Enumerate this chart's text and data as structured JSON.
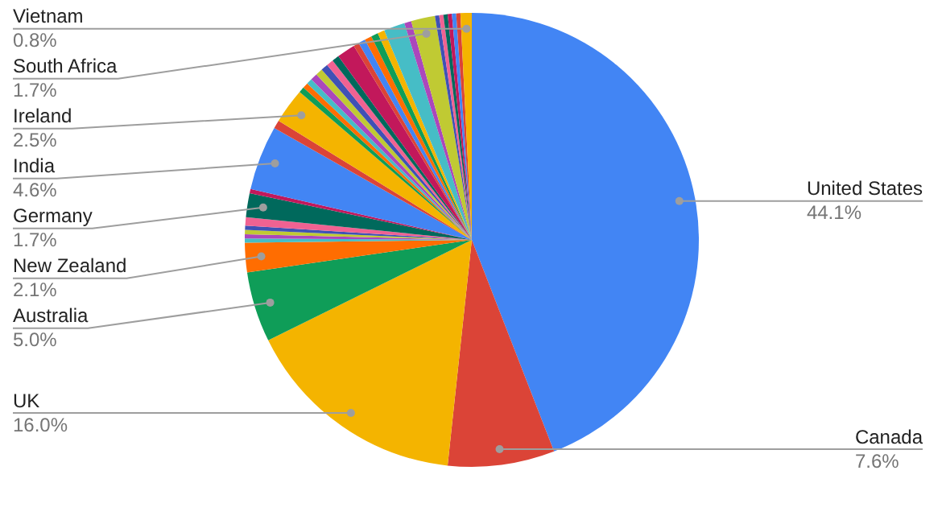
{
  "chart_data": {
    "type": "pie",
    "legend": false,
    "categories": [
      "United States",
      "Canada",
      "UK",
      "Australia",
      "New Zealand",
      null,
      null,
      null,
      null,
      null,
      "Germany",
      null,
      "India",
      null,
      "Ireland",
      null,
      null,
      null,
      null,
      null,
      null,
      null,
      null,
      null,
      null,
      null,
      null,
      null,
      null,
      null,
      null,
      "South Africa",
      null,
      null,
      null,
      null,
      null,
      null,
      "Vietnam"
    ],
    "values": [
      44.1,
      7.6,
      16.0,
      5.0,
      2.1,
      0.3,
      0.3,
      0.3,
      0.3,
      0.6,
      1.7,
      0.3,
      4.6,
      0.6,
      2.5,
      0.4,
      0.4,
      0.4,
      0.5,
      0.5,
      0.5,
      0.5,
      0.5,
      1.3,
      0.4,
      0.5,
      0.5,
      0.5,
      0.5,
      1.5,
      0.5,
      1.7,
      0.3,
      0.3,
      0.3,
      0.3,
      0.3,
      0.3,
      0.8
    ],
    "value_labels": [
      "44.1%",
      "7.6%",
      "16.0%",
      "5.0%",
      "2.1%",
      null,
      null,
      null,
      null,
      null,
      "1.7%",
      null,
      "4.6%",
      null,
      "2.5%",
      null,
      null,
      null,
      null,
      null,
      null,
      null,
      null,
      null,
      null,
      null,
      null,
      null,
      null,
      null,
      null,
      "1.7%",
      null,
      null,
      null,
      null,
      null,
      null,
      "0.8%"
    ],
    "colors": [
      "#4285f4",
      "#db4437",
      "#f4b400",
      "#0f9d58",
      "#ff6d01",
      "#46bdc6",
      "#ab47bc",
      "#c0ca33",
      "#3f51b5",
      "#f06292",
      "#00695c",
      "#c2185b",
      "#4285f4",
      "#db4437",
      "#f4b400",
      "#0f9d58",
      "#ff6d01",
      "#46bdc6",
      "#ab47bc",
      "#c0ca33",
      "#3f51b5",
      "#f06292",
      "#00695c",
      "#c2185b",
      "#db4437",
      "#4285f4",
      "#ff6d01",
      "#0f9d58",
      "#f4b400",
      "#46bdc6",
      "#ab47bc",
      "#c0ca33",
      "#3f51b5",
      "#f06292",
      "#00695c",
      "#c2185b",
      "#4285f4",
      "#db4437",
      "#f4b400"
    ]
  }
}
